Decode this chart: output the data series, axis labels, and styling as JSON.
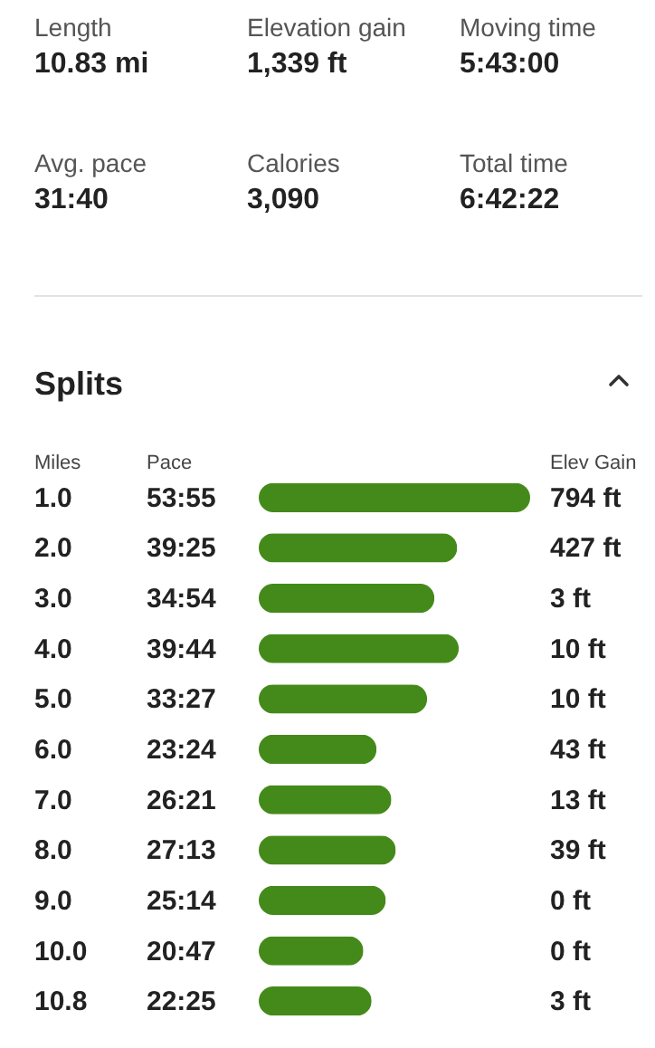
{
  "chart_data": [
    {
      "type": "other",
      "annotations": [
        "Length",
        "10.83 mi",
        "Elevation gain",
        "1,339 ft",
        "Moving time",
        "5:43:00",
        "Avg. pace",
        "31:40",
        "Calories",
        "3,090",
        "Total time",
        "6:42:22"
      ]
    },
    {
      "type": "bar",
      "orientation": "horizontal",
      "title": "Splits",
      "ylabel": "Miles",
      "xlabel": "Pace",
      "categories": [
        "1.0",
        "2.0",
        "3.0",
        "4.0",
        "5.0",
        "6.0",
        "7.0",
        "8.0",
        "9.0",
        "10.0",
        "10.8"
      ],
      "values": [
        53.917,
        39.417,
        34.9,
        39.733,
        33.45,
        23.4,
        26.35,
        27.217,
        25.233,
        20.783,
        22.417
      ],
      "value_labels": [
        "53:55",
        "39:25",
        "34:54",
        "39:44",
        "33:27",
        "23:24",
        "26:21",
        "27:13",
        "25:14",
        "20:47",
        "22:25"
      ],
      "color": "#448a1a",
      "annotations": [
        "Elev Gain",
        "794 ft",
        "427 ft",
        "3 ft",
        "10 ft",
        "10 ft",
        "43 ft",
        "13 ft",
        "39 ft",
        "0 ft",
        "0 ft",
        "3 ft"
      ]
    }
  ]
}
